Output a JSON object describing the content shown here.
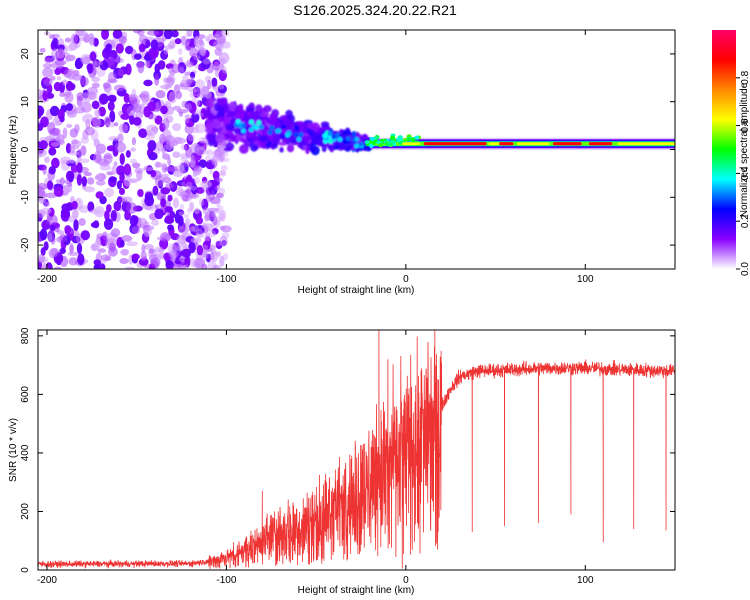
{
  "title": "S126.2025.324.20.22.R21",
  "chart_data": [
    {
      "type": "heatmap",
      "name": "spectrogram",
      "xlabel": "Height of straight line (km)",
      "ylabel": "Frequency (Hz)",
      "xlim": [
        -205,
        150
      ],
      "ylim": [
        -25,
        25
      ],
      "xticks": [
        -200,
        -100,
        0,
        100
      ],
      "yticks": [
        -20,
        -10,
        0,
        10,
        20
      ],
      "colorbar": {
        "label": "Normalized spectral amplitude",
        "range": [
          0,
          1
        ],
        "ticks": [
          "0.0",
          "0.2",
          "0.4",
          "0.6",
          "0.8"
        ],
        "colors": [
          "#ffffff",
          "#8800ff",
          "#0000ff",
          "#00ffff",
          "#00ff00",
          "#ffff00",
          "#ff8800",
          "#ff0000",
          "#ff0066"
        ]
      },
      "features": {
        "noise_region_km": [
          -205,
          -110
        ],
        "transition_region_km": [
          -110,
          -20
        ],
        "carrier_line_km": [
          -20,
          150
        ],
        "carrier_freq_hz": 1.2
      }
    },
    {
      "type": "line",
      "name": "snr",
      "xlabel": "Height of straight line (km)",
      "ylabel": "SNR (10 * v/v)",
      "xlim": [
        -205,
        150
      ],
      "ylim": [
        0,
        820
      ],
      "xticks": [
        -200,
        -100,
        0,
        100
      ],
      "yticks": [
        0,
        200,
        400,
        600,
        800
      ],
      "color": "#ee3333",
      "profile_points": [
        [
          -205,
          20
        ],
        [
          -120,
          22
        ],
        [
          -110,
          30
        ],
        [
          -100,
          45
        ],
        [
          -90,
          70
        ],
        [
          -80,
          110
        ],
        [
          -70,
          140
        ],
        [
          -60,
          160
        ],
        [
          -50,
          190
        ],
        [
          -40,
          220
        ],
        [
          -30,
          260
        ],
        [
          -20,
          320
        ],
        [
          -10,
          380
        ],
        [
          0,
          430
        ],
        [
          10,
          480
        ],
        [
          20,
          560
        ],
        [
          25,
          620
        ],
        [
          30,
          660
        ],
        [
          40,
          680
        ],
        [
          60,
          685
        ],
        [
          80,
          690
        ],
        [
          100,
          690
        ],
        [
          120,
          685
        ],
        [
          150,
          680
        ]
      ],
      "spikes_up": [
        [
          -80,
          270
        ],
        [
          -15,
          820
        ],
        [
          -10,
          720
        ]
      ],
      "dropouts": [
        [
          -2,
          5
        ],
        [
          18,
          130
        ],
        [
          37,
          130
        ],
        [
          55,
          150
        ],
        [
          74,
          160
        ],
        [
          92,
          190
        ],
        [
          110,
          95
        ],
        [
          127,
          140
        ],
        [
          145,
          135
        ]
      ]
    }
  ]
}
